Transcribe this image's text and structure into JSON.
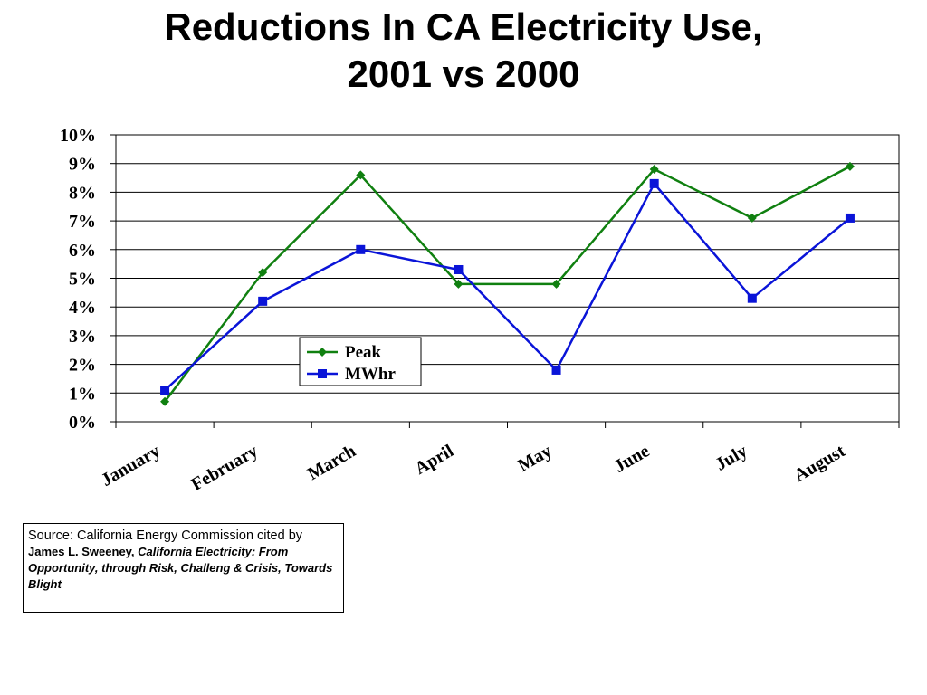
{
  "title": {
    "line1": "Reductions In CA Electricity Use,",
    "line2": "2001 vs 2000"
  },
  "chart_data": {
    "type": "line",
    "title": "Reductions In CA Electricity Use, 2001 vs 2000",
    "categories": [
      "January",
      "February",
      "March",
      "April",
      "May",
      "June",
      "July",
      "August"
    ],
    "series": [
      {
        "name": "Peak",
        "color": "#108010",
        "marker": "diamond",
        "values": [
          0.7,
          5.2,
          8.6,
          4.8,
          4.8,
          8.8,
          7.1,
          8.9
        ]
      },
      {
        "name": "MWhr",
        "color": "#0a14d8",
        "marker": "square",
        "values": [
          1.1,
          4.2,
          6.0,
          5.3,
          1.8,
          8.3,
          4.3,
          7.1
        ]
      }
    ],
    "ylim": [
      0,
      10
    ],
    "yticks": [
      "0%",
      "1%",
      "2%",
      "3%",
      "4%",
      "5%",
      "6%",
      "7%",
      "8%",
      "9%",
      "10%"
    ],
    "ylabel": "",
    "xlabel": "",
    "grid": true,
    "legend": "center-left"
  },
  "source": {
    "prefix": "Source:  California Energy Commission cited by ",
    "author": "James L. Sweeney,",
    "work": " California Electricity:  From Opportunity, through Risk, Challeng & Crisis, Towards Blight"
  }
}
